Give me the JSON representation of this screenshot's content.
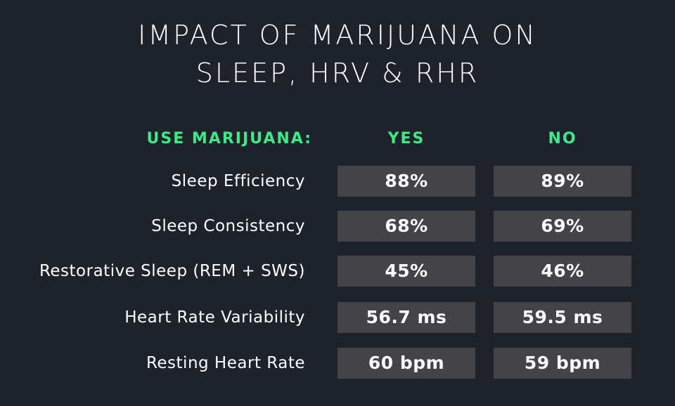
{
  "title": {
    "line1": "IMPACT OF MARIJUANA ON",
    "line2": "SLEEP, HRV & RHR"
  },
  "chart_data": {
    "type": "table",
    "header": {
      "label": "USE MARIJUANA:",
      "columns": [
        "YES",
        "NO"
      ]
    },
    "rows": [
      {
        "label": "Sleep Efficiency",
        "yes": "88%",
        "no": "89%"
      },
      {
        "label": "Sleep Consistency",
        "yes": "68%",
        "no": "69%"
      },
      {
        "label": "Restorative Sleep (REM + SWS)",
        "yes": "45%",
        "no": "46%"
      },
      {
        "label": "Heart Rate Variability",
        "yes": "56.7 ms",
        "no": "59.5 ms"
      },
      {
        "label": "Resting Heart Rate",
        "yes": "60 bpm",
        "no": "59 bpm"
      }
    ]
  },
  "colors": {
    "background": "#1e232b",
    "accent": "#3dea8a",
    "cell_background": "#434348",
    "text": "#ffffff"
  }
}
